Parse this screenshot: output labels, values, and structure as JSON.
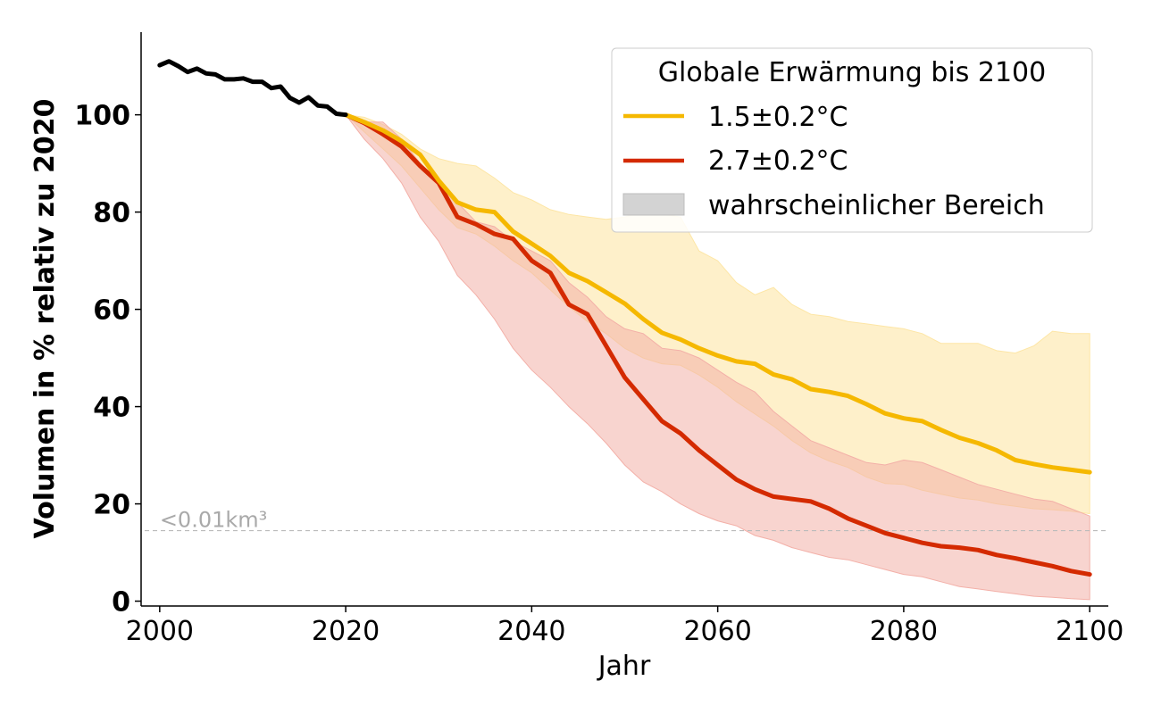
{
  "chart_data": {
    "type": "line",
    "xlabel": "Jahr",
    "ylabel": "Volumen in % relativ zu 2020",
    "xlim": [
      1998,
      2102
    ],
    "ylim": [
      -1,
      117
    ],
    "x_ticks": [
      2000,
      2020,
      2040,
      2060,
      2080,
      2100
    ],
    "y_ticks": [
      0,
      20,
      40,
      60,
      80,
      100
    ],
    "grid": false,
    "legend": {
      "title": "Globale Erwärmung bis 2100",
      "position": "top-right",
      "entries": [
        "1.5±0.2°C",
        "2.7±0.2°C",
        "wahrscheinlicher Bereich"
      ]
    },
    "reference_line": {
      "y": 14.5,
      "label": "<0.01km³",
      "color": "#bbbbbb"
    },
    "historical": {
      "color": "#000000",
      "x": [
        2000,
        2001,
        2002,
        2003,
        2004,
        2005,
        2006,
        2007,
        2008,
        2009,
        2010,
        2011,
        2012,
        2013,
        2014,
        2015,
        2016,
        2017,
        2018,
        2019,
        2020
      ],
      "y": [
        110.2,
        111.0,
        110.0,
        108.8,
        109.5,
        108.5,
        108.3,
        107.3,
        107.3,
        107.5,
        106.8,
        106.8,
        105.5,
        105.8,
        103.5,
        102.5,
        103.6,
        101.9,
        101.7,
        100.2,
        100.0
      ]
    },
    "series": [
      {
        "name": "1.5±0.2°C",
        "color": "#f5b800",
        "band_color": "#fde6a6",
        "x": [
          2020,
          2022,
          2024,
          2026,
          2028,
          2030,
          2032,
          2034,
          2036,
          2038,
          2040,
          2042,
          2044,
          2046,
          2048,
          2050,
          2052,
          2054,
          2056,
          2058,
          2060,
          2062,
          2064,
          2066,
          2068,
          2070,
          2072,
          2074,
          2076,
          2078,
          2080,
          2082,
          2084,
          2086,
          2088,
          2090,
          2092,
          2094,
          2096,
          2098,
          2100
        ],
        "values": [
          100,
          98.5,
          96.8,
          94.6,
          91.8,
          86.5,
          82.0,
          80.5,
          80.0,
          76.0,
          73.5,
          71.0,
          67.5,
          65.8,
          63.5,
          61.2,
          58.0,
          55.2,
          53.8,
          52.0,
          50.5,
          49.3,
          48.8,
          46.6,
          45.6,
          43.6,
          43.0,
          42.2,
          40.5,
          38.6,
          37.6,
          37.0,
          35.2,
          33.6,
          32.5,
          31.0,
          29.0,
          28.2,
          27.5,
          27.0,
          26.5
        ],
        "lower": [
          100,
          96.5,
          93.0,
          89.5,
          85.0,
          80.5,
          76.8,
          75.5,
          73.0,
          70.0,
          67.5,
          64.0,
          60.5,
          57.5,
          55.0,
          52.0,
          50.0,
          48.8,
          48.5,
          46.5,
          44.0,
          41.0,
          38.5,
          36.0,
          33.0,
          30.5,
          28.8,
          27.5,
          25.5,
          24.2,
          24.0,
          22.8,
          22.0,
          21.2,
          20.8,
          20.0,
          19.5,
          19.0,
          18.8,
          18.5,
          18.0
        ],
        "upper": [
          100,
          99.5,
          98.0,
          96.0,
          93.0,
          91.0,
          90.0,
          89.5,
          87.0,
          84.0,
          82.5,
          80.5,
          79.5,
          79.0,
          78.5,
          79.0,
          80.0,
          79.5,
          79.0,
          72.0,
          70.0,
          65.5,
          63.0,
          64.5,
          61.0,
          59.0,
          58.5,
          57.5,
          57.0,
          56.5,
          56.0,
          55.0,
          53.0,
          53.0,
          53.0,
          51.5,
          51.0,
          52.5,
          55.5,
          55.0,
          55.0
        ]
      },
      {
        "name": "2.7±0.2°C",
        "color": "#d42a00",
        "band_color": "#f3b0a8",
        "x": [
          2020,
          2022,
          2024,
          2026,
          2028,
          2030,
          2032,
          2034,
          2036,
          2038,
          2040,
          2042,
          2044,
          2046,
          2048,
          2050,
          2052,
          2054,
          2056,
          2058,
          2060,
          2062,
          2064,
          2066,
          2068,
          2070,
          2072,
          2074,
          2076,
          2078,
          2080,
          2082,
          2084,
          2086,
          2088,
          2090,
          2092,
          2094,
          2096,
          2098,
          2100
        ],
        "values": [
          100,
          98.3,
          96.0,
          93.5,
          89.5,
          86.0,
          79.0,
          77.5,
          75.5,
          74.5,
          70.0,
          67.5,
          61.0,
          59.0,
          52.5,
          46.0,
          41.5,
          37.0,
          34.5,
          31.0,
          28.0,
          25.0,
          23.0,
          21.5,
          21.0,
          20.5,
          19.0,
          17.0,
          15.5,
          14.0,
          13.0,
          12.0,
          11.3,
          11.0,
          10.5,
          9.5,
          8.8,
          8.0,
          7.2,
          6.2,
          5.5
        ],
        "lower": [
          100,
          95.0,
          91.0,
          86.0,
          79.0,
          74.0,
          67.0,
          63.0,
          58.0,
          52.0,
          47.5,
          44.0,
          40.0,
          36.5,
          32.5,
          28.0,
          24.5,
          22.5,
          20.0,
          18.0,
          16.5,
          15.5,
          13.5,
          12.5,
          11.0,
          10.0,
          9.0,
          8.5,
          7.5,
          6.5,
          5.5,
          5.0,
          4.0,
          3.0,
          2.5,
          2.0,
          1.5,
          1.0,
          0.8,
          0.5,
          0.3
        ],
        "upper": [
          100,
          98.5,
          98.5,
          95.0,
          90.0,
          86.0,
          82.0,
          78.0,
          77.0,
          74.0,
          72.0,
          70.0,
          65.5,
          62.5,
          58.5,
          56.0,
          55.0,
          52.0,
          51.5,
          50.0,
          47.5,
          45.0,
          43.0,
          39.0,
          36.0,
          33.0,
          31.5,
          30.0,
          28.5,
          28.0,
          29.0,
          28.5,
          27.0,
          25.5,
          24.0,
          23.0,
          22.0,
          21.0,
          20.5,
          19.0,
          17.5
        ]
      }
    ]
  }
}
